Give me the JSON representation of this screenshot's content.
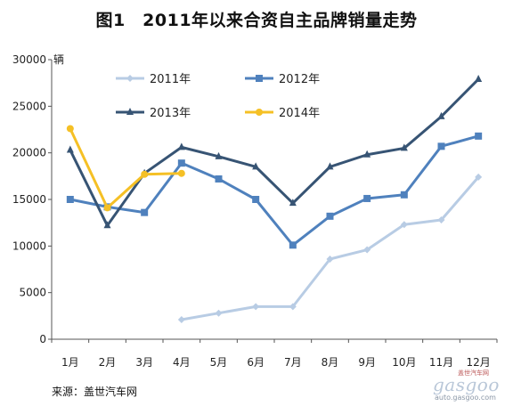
{
  "chart_data": {
    "type": "line",
    "title": "图1　2011年以来合资自主品牌销量走势",
    "ylabel_unit": "辆",
    "ylim": [
      0,
      30000
    ],
    "yticks": [
      0,
      5000,
      10000,
      15000,
      20000,
      25000,
      30000
    ],
    "categories": [
      "1月",
      "2月",
      "3月",
      "4月",
      "5月",
      "6月",
      "7月",
      "8月",
      "9月",
      "10月",
      "11月",
      "12月"
    ],
    "legend_position": "top",
    "grid": false,
    "series": [
      {
        "name": "2011年",
        "color": "#b8cce4",
        "marker": "diamond",
        "values": [
          null,
          null,
          null,
          2100,
          2800,
          3500,
          3500,
          8600,
          9600,
          12300,
          12800,
          17400
        ]
      },
      {
        "name": "2012年",
        "color": "#4f81bd",
        "marker": "square",
        "values": [
          15000,
          14200,
          13600,
          18900,
          17200,
          15000,
          10100,
          13200,
          15100,
          15500,
          20700,
          21800
        ]
      },
      {
        "name": "2013年",
        "color": "#375474",
        "marker": "triangle",
        "values": [
          20300,
          12200,
          17800,
          20600,
          19600,
          18500,
          14600,
          18500,
          19800,
          20500,
          23900,
          27900
        ]
      },
      {
        "name": "2014年",
        "color": "#f5c025",
        "marker": "circle",
        "values": [
          22600,
          14100,
          17700,
          17800,
          null,
          null,
          null,
          null,
          null,
          null,
          null,
          null
        ]
      }
    ]
  },
  "source": "来源：盖世汽车网",
  "watermark": {
    "logo": "gasgoo",
    "url": "auto.gasgoo.com",
    "cn": "盖世汽车网"
  }
}
